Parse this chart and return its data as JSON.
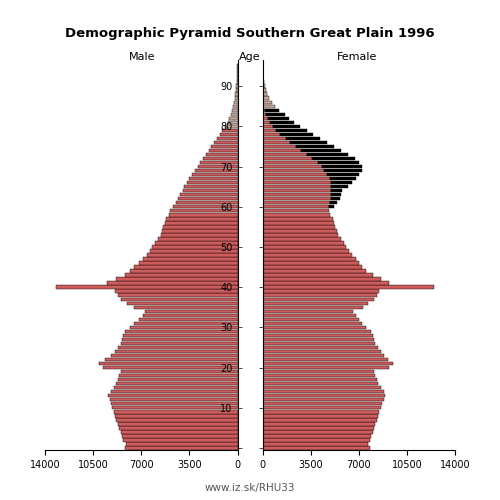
{
  "title": "Demographic Pyramid Southern Great Plain 1996",
  "xlabel_left": "Male",
  "xlabel_right": "Female",
  "xlabel_center": "Age",
  "footer": "www.iz.sk/RHU33",
  "xlim": 14000,
  "bar_color": "#CD5C5C",
  "bar_color_excess": "#000000",
  "bar_color_old": "#C8A89A",
  "ages": [
    0,
    1,
    2,
    3,
    4,
    5,
    6,
    7,
    8,
    9,
    10,
    11,
    12,
    13,
    14,
    15,
    16,
    17,
    18,
    19,
    20,
    21,
    22,
    23,
    24,
    25,
    26,
    27,
    28,
    29,
    30,
    31,
    32,
    33,
    34,
    35,
    36,
    37,
    38,
    39,
    40,
    41,
    42,
    43,
    44,
    45,
    46,
    47,
    48,
    49,
    50,
    51,
    52,
    53,
    54,
    55,
    56,
    57,
    58,
    59,
    60,
    61,
    62,
    63,
    64,
    65,
    66,
    67,
    68,
    69,
    70,
    71,
    72,
    73,
    74,
    75,
    76,
    77,
    78,
    79,
    80,
    81,
    82,
    83,
    84,
    85,
    86,
    87,
    88,
    89,
    90,
    91,
    92,
    93,
    94,
    95
  ],
  "male": [
    8200,
    8100,
    8300,
    8400,
    8500,
    8600,
    8700,
    8800,
    8900,
    9000,
    9100,
    9200,
    9300,
    9400,
    9200,
    9000,
    8800,
    8700,
    8600,
    8500,
    9800,
    10100,
    9600,
    9200,
    8900,
    8700,
    8500,
    8400,
    8300,
    8200,
    7800,
    7500,
    7200,
    6900,
    6700,
    7500,
    8000,
    8500,
    8700,
    8900,
    13200,
    9500,
    8800,
    8200,
    7800,
    7500,
    7200,
    6900,
    6600,
    6400,
    6200,
    6000,
    5800,
    5600,
    5500,
    5400,
    5300,
    5200,
    5000,
    4900,
    4700,
    4500,
    4300,
    4200,
    4000,
    3900,
    3700,
    3500,
    3300,
    3100,
    2900,
    2700,
    2500,
    2300,
    2100,
    1900,
    1700,
    1500,
    1300,
    1100,
    900,
    700,
    600,
    500,
    400,
    300,
    250,
    200,
    150,
    100,
    80,
    60,
    40,
    30,
    20,
    10
  ],
  "female": [
    7800,
    7700,
    7800,
    7900,
    8000,
    8100,
    8200,
    8300,
    8400,
    8500,
    8600,
    8700,
    8800,
    8900,
    8800,
    8600,
    8400,
    8300,
    8200,
    8100,
    9200,
    9500,
    9100,
    8800,
    8600,
    8400,
    8200,
    8100,
    8000,
    7900,
    7500,
    7200,
    7000,
    6800,
    6600,
    7300,
    7700,
    8100,
    8300,
    8500,
    12500,
    9200,
    8600,
    8000,
    7500,
    7200,
    7000,
    6800,
    6500,
    6300,
    6100,
    5900,
    5700,
    5500,
    5400,
    5300,
    5200,
    5100,
    4900,
    4800,
    5200,
    5400,
    5600,
    5700,
    5800,
    6200,
    6500,
    6800,
    7000,
    7200,
    7200,
    7000,
    6700,
    6200,
    5700,
    5200,
    4700,
    4200,
    3700,
    3200,
    2700,
    2300,
    1900,
    1600,
    1200,
    900,
    700,
    500,
    350,
    230,
    160,
    110,
    70,
    45,
    25,
    12
  ],
  "female_base": [
    7800,
    7700,
    7800,
    7900,
    8000,
    8100,
    8200,
    8300,
    8400,
    8500,
    8600,
    8700,
    8800,
    8900,
    8800,
    8600,
    8400,
    8300,
    8200,
    8100,
    9200,
    9500,
    9100,
    8800,
    8600,
    8400,
    8200,
    8100,
    8000,
    7900,
    7500,
    7200,
    7000,
    6800,
    6600,
    7300,
    7700,
    8100,
    8300,
    8500,
    12500,
    9200,
    8600,
    8000,
    7500,
    7200,
    7000,
    6800,
    6500,
    6300,
    6100,
    5900,
    5700,
    5500,
    5400,
    5300,
    5200,
    5100,
    4900,
    4800,
    4800,
    4900,
    5000,
    5000,
    5000,
    5000,
    5000,
    4900,
    4700,
    4500,
    4300,
    4000,
    3600,
    3200,
    2800,
    2400,
    2000,
    1700,
    1300,
    1000,
    750,
    550,
    380,
    260,
    170,
    100,
    70,
    50,
    30,
    20,
    12,
    8,
    5,
    3,
    2,
    1
  ],
  "male_base": [
    8200,
    8100,
    8300,
    8400,
    8500,
    8600,
    8700,
    8800,
    8900,
    9000,
    9100,
    9200,
    9300,
    9400,
    9200,
    9000,
    8800,
    8700,
    8600,
    8500,
    9800,
    10100,
    9600,
    9200,
    8900,
    8700,
    8500,
    8400,
    8300,
    8200,
    7800,
    7500,
    7200,
    6900,
    6700,
    7500,
    8000,
    8500,
    8700,
    8900,
    13200,
    9500,
    8800,
    8200,
    7800,
    7500,
    7200,
    6900,
    6600,
    6400,
    6200,
    6000,
    5800,
    5600,
    5500,
    5400,
    5300,
    5200,
    5000,
    4900,
    4700,
    4500,
    4300,
    4200,
    4000,
    3900,
    3700,
    3500,
    3300,
    3100,
    2900,
    2700,
    2500,
    2300,
    2100,
    1900,
    1700,
    1500,
    1300,
    1100,
    900,
    700,
    600,
    500,
    400,
    300,
    250,
    200,
    150,
    100,
    80,
    60,
    40,
    30,
    20,
    10
  ]
}
